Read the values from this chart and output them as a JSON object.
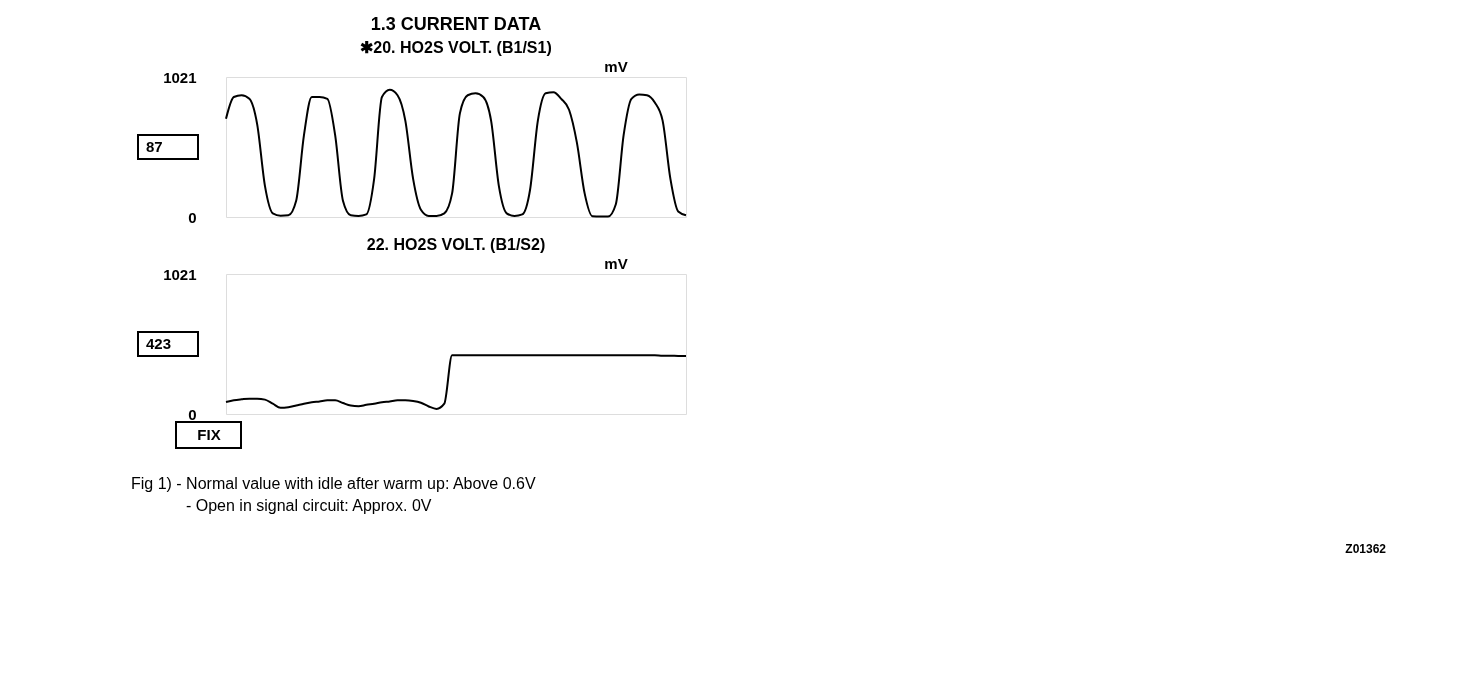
{
  "chart_data": [
    {
      "type": "line",
      "title": "1.3 CURRENT DATA",
      "subtitle": "✱20. HO2S VOLT. (B1/S1)",
      "color": "#000000",
      "tick_labels": "y",
      "categories": [
        null,
        null,
        null,
        null,
        null,
        null,
        null,
        null,
        null,
        null,
        null,
        null,
        null,
        null,
        null,
        null,
        null,
        null,
        null,
        null,
        null,
        null,
        null,
        null,
        null,
        null,
        null,
        null,
        null,
        null,
        null,
        null,
        null,
        null,
        null,
        null,
        null,
        null,
        null,
        null,
        null,
        null,
        null,
        null,
        null,
        null,
        null,
        null,
        null,
        null,
        null,
        null,
        null,
        null,
        null,
        null,
        null,
        null,
        null,
        null
      ],
      "values": [
        716,
        875,
        888,
        862,
        676,
        225,
        27,
        10,
        13,
        119,
        597,
        875,
        875,
        862,
        597,
        119,
        13,
        8,
        19,
        278,
        875,
        928,
        888,
        703,
        278,
        53,
        8,
        8,
        27,
        172,
        756,
        888,
        902,
        875,
        703,
        225,
        27,
        8,
        19,
        199,
        703,
        902,
        910,
        862,
        782,
        544,
        172,
        5,
        3,
        3,
        93,
        597,
        862,
        894,
        888,
        835,
        703,
        278,
        40,
        13
      ],
      "ylim": [
        0,
        1021
      ],
      "yticks": [
        0,
        1021
      ],
      "annotations": [
        "mV",
        "87"
      ]
    },
    {
      "type": "line",
      "title": "22. HO2S VOLT. (B1/S2)",
      "color": "#000000",
      "tick_labels": "y",
      "categories": [
        null,
        null,
        null,
        null,
        null,
        null,
        null,
        null,
        null,
        null,
        null,
        null,
        null,
        null,
        null,
        null,
        null,
        null,
        null,
        null,
        null,
        null,
        null,
        null,
        null,
        null,
        null,
        null,
        null,
        null,
        null,
        null,
        null,
        null,
        null,
        null,
        null,
        null,
        null,
        null,
        null,
        null,
        null,
        null,
        null,
        null,
        null,
        null,
        null,
        null,
        null,
        null,
        null,
        null,
        null,
        null,
        null,
        null,
        null,
        null
      ],
      "values": [
        87,
        100,
        107,
        112,
        112,
        105,
        75,
        45,
        50,
        62,
        75,
        85,
        92,
        100,
        100,
        80,
        62,
        57,
        67,
        75,
        85,
        92,
        100,
        100,
        95,
        82,
        55,
        37,
        75,
        428,
        428,
        428,
        428,
        428,
        428,
        428,
        428,
        428,
        428,
        428,
        428,
        428,
        428,
        428,
        428,
        428,
        428,
        428,
        428,
        428,
        428,
        428,
        428,
        428,
        428,
        428,
        425,
        425,
        423,
        423
      ],
      "ylim": [
        0,
        1021
      ],
      "yticks": [
        0,
        1021
      ],
      "annotations": [
        "mV",
        "423",
        "FIX",
        "Fig 1) - Normal value with idle after warm up: Above 0.6V",
        "- Open in signal circuit: Approx. 0V",
        "Z01362"
      ]
    }
  ]
}
